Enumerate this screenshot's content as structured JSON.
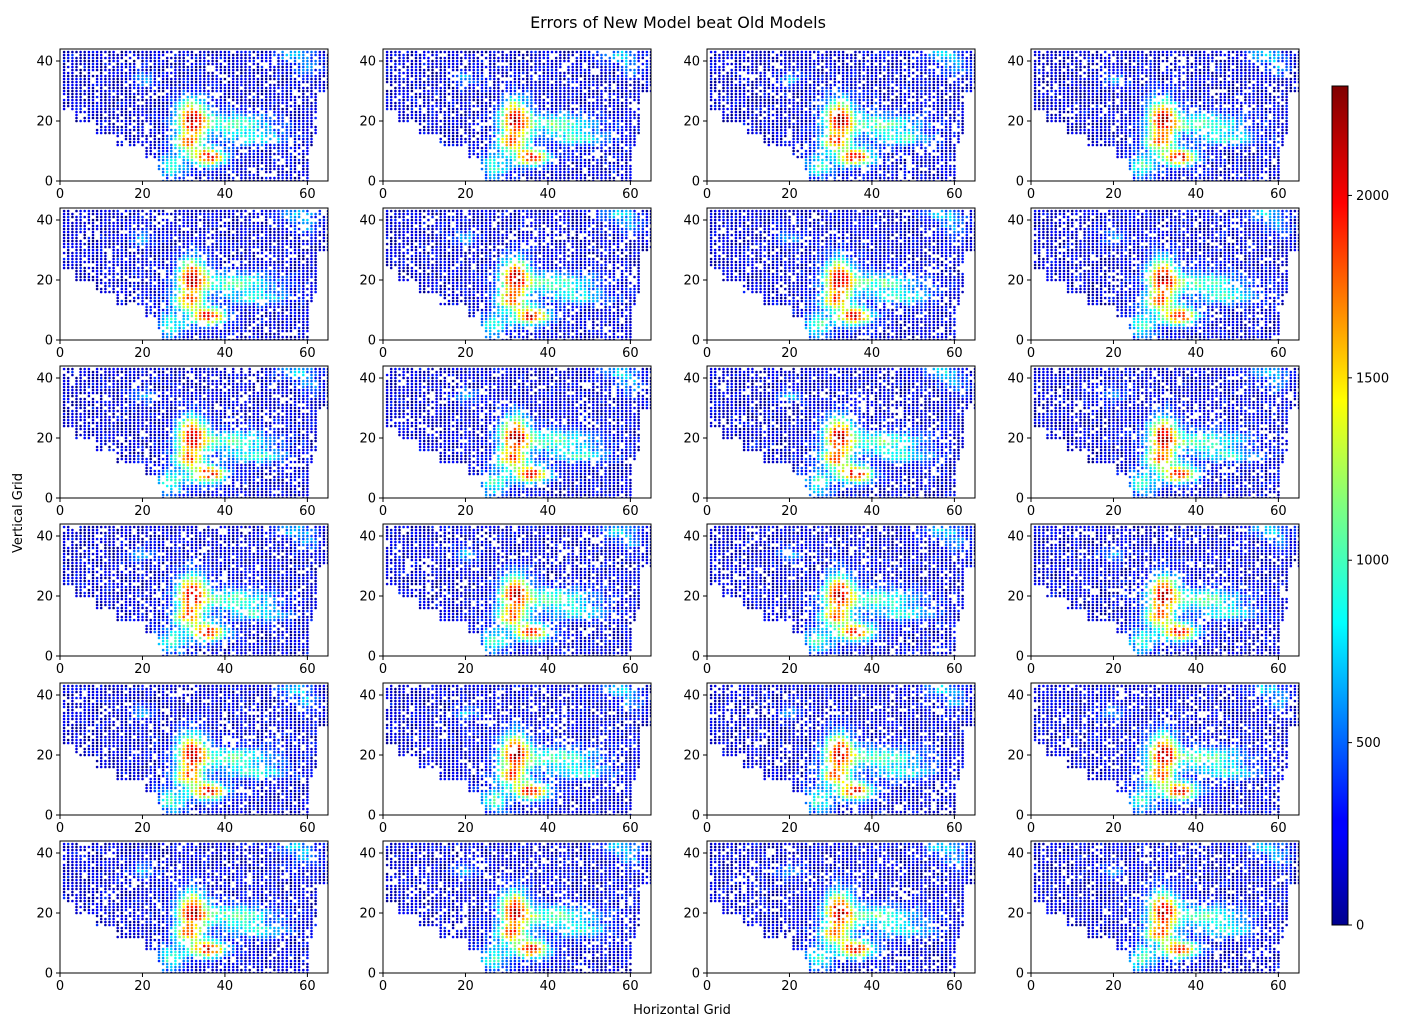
{
  "title": "Errors of New Model beat Old Models",
  "chart_data": {
    "type": "scatter",
    "title": "Errors of New Model beat Old Models",
    "xlabel": "Horizontal Grid",
    "ylabel": "Vertical Grid",
    "rows": 6,
    "cols": 4,
    "panel_count": 24,
    "xlim": [
      0,
      65
    ],
    "ylim": [
      0,
      44
    ],
    "xticks": [
      0,
      20,
      40,
      60
    ],
    "yticks": [
      0,
      20,
      40
    ],
    "grid": false,
    "colormap": "jet",
    "marker_color_low": "#00008f",
    "marker_color_high": "#800000",
    "colorbar": {
      "position": "right",
      "min": 0,
      "max": 2300,
      "ticks": [
        0,
        500,
        1000,
        1500,
        2000
      ]
    }
  }
}
